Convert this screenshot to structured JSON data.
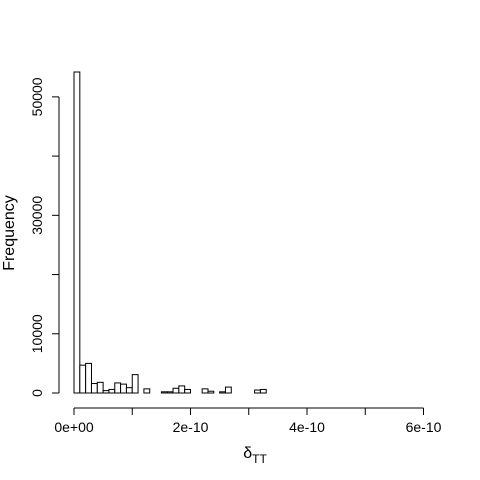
{
  "chart_data": {
    "type": "bar",
    "title": "",
    "xlabel": "δ",
    "xlabel_subscript": "TT",
    "ylabel": "Frequency",
    "bin_width": 1e-11,
    "x_start": 0,
    "values": [
      54200,
      4700,
      5000,
      1600,
      1800,
      400,
      600,
      1700,
      1500,
      900,
      3100,
      0,
      700,
      0,
      0,
      200,
      200,
      800,
      1200,
      600,
      0,
      0,
      700,
      300,
      0,
      200,
      1000,
      0,
      0,
      0,
      0,
      500,
      600
    ],
    "xlim": [
      0,
      6.2e-10
    ],
    "ylim": [
      0,
      54200
    ],
    "x_ticks": [
      0,
      1e-10,
      2e-10,
      3e-10,
      4e-10,
      5e-10,
      6e-10
    ],
    "x_tick_labels": [
      "0e+00",
      "",
      "2e-10",
      "",
      "4e-10",
      "",
      "6e-10"
    ],
    "y_ticks": [
      0,
      10000,
      20000,
      30000,
      40000,
      50000
    ],
    "y_tick_labels": [
      "0",
      "10000",
      "",
      "30000",
      "",
      "50000"
    ],
    "grid": false,
    "legend": "none",
    "bar_fill": "#ffffff",
    "bar_stroke": "#000000"
  }
}
